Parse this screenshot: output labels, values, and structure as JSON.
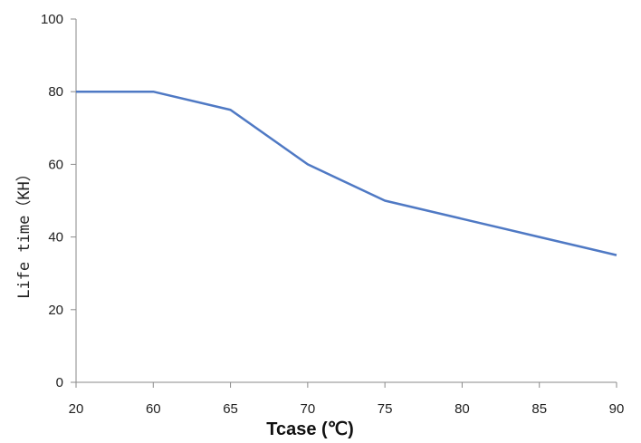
{
  "chart_data": {
    "type": "line",
    "title": "",
    "xlabel": "Tcase (℃)",
    "ylabel": "Life time（KH）",
    "categories": [
      "20",
      "60",
      "65",
      "70",
      "75",
      "80",
      "85",
      "90"
    ],
    "ylim": [
      0,
      100
    ],
    "yticks": [
      0,
      20,
      40,
      60,
      80,
      100
    ],
    "grid": false,
    "legend": "none",
    "series": [
      {
        "values": [
          80,
          80,
          75,
          60,
          50,
          45,
          40,
          35
        ],
        "color": "#4f79c4"
      }
    ]
  }
}
